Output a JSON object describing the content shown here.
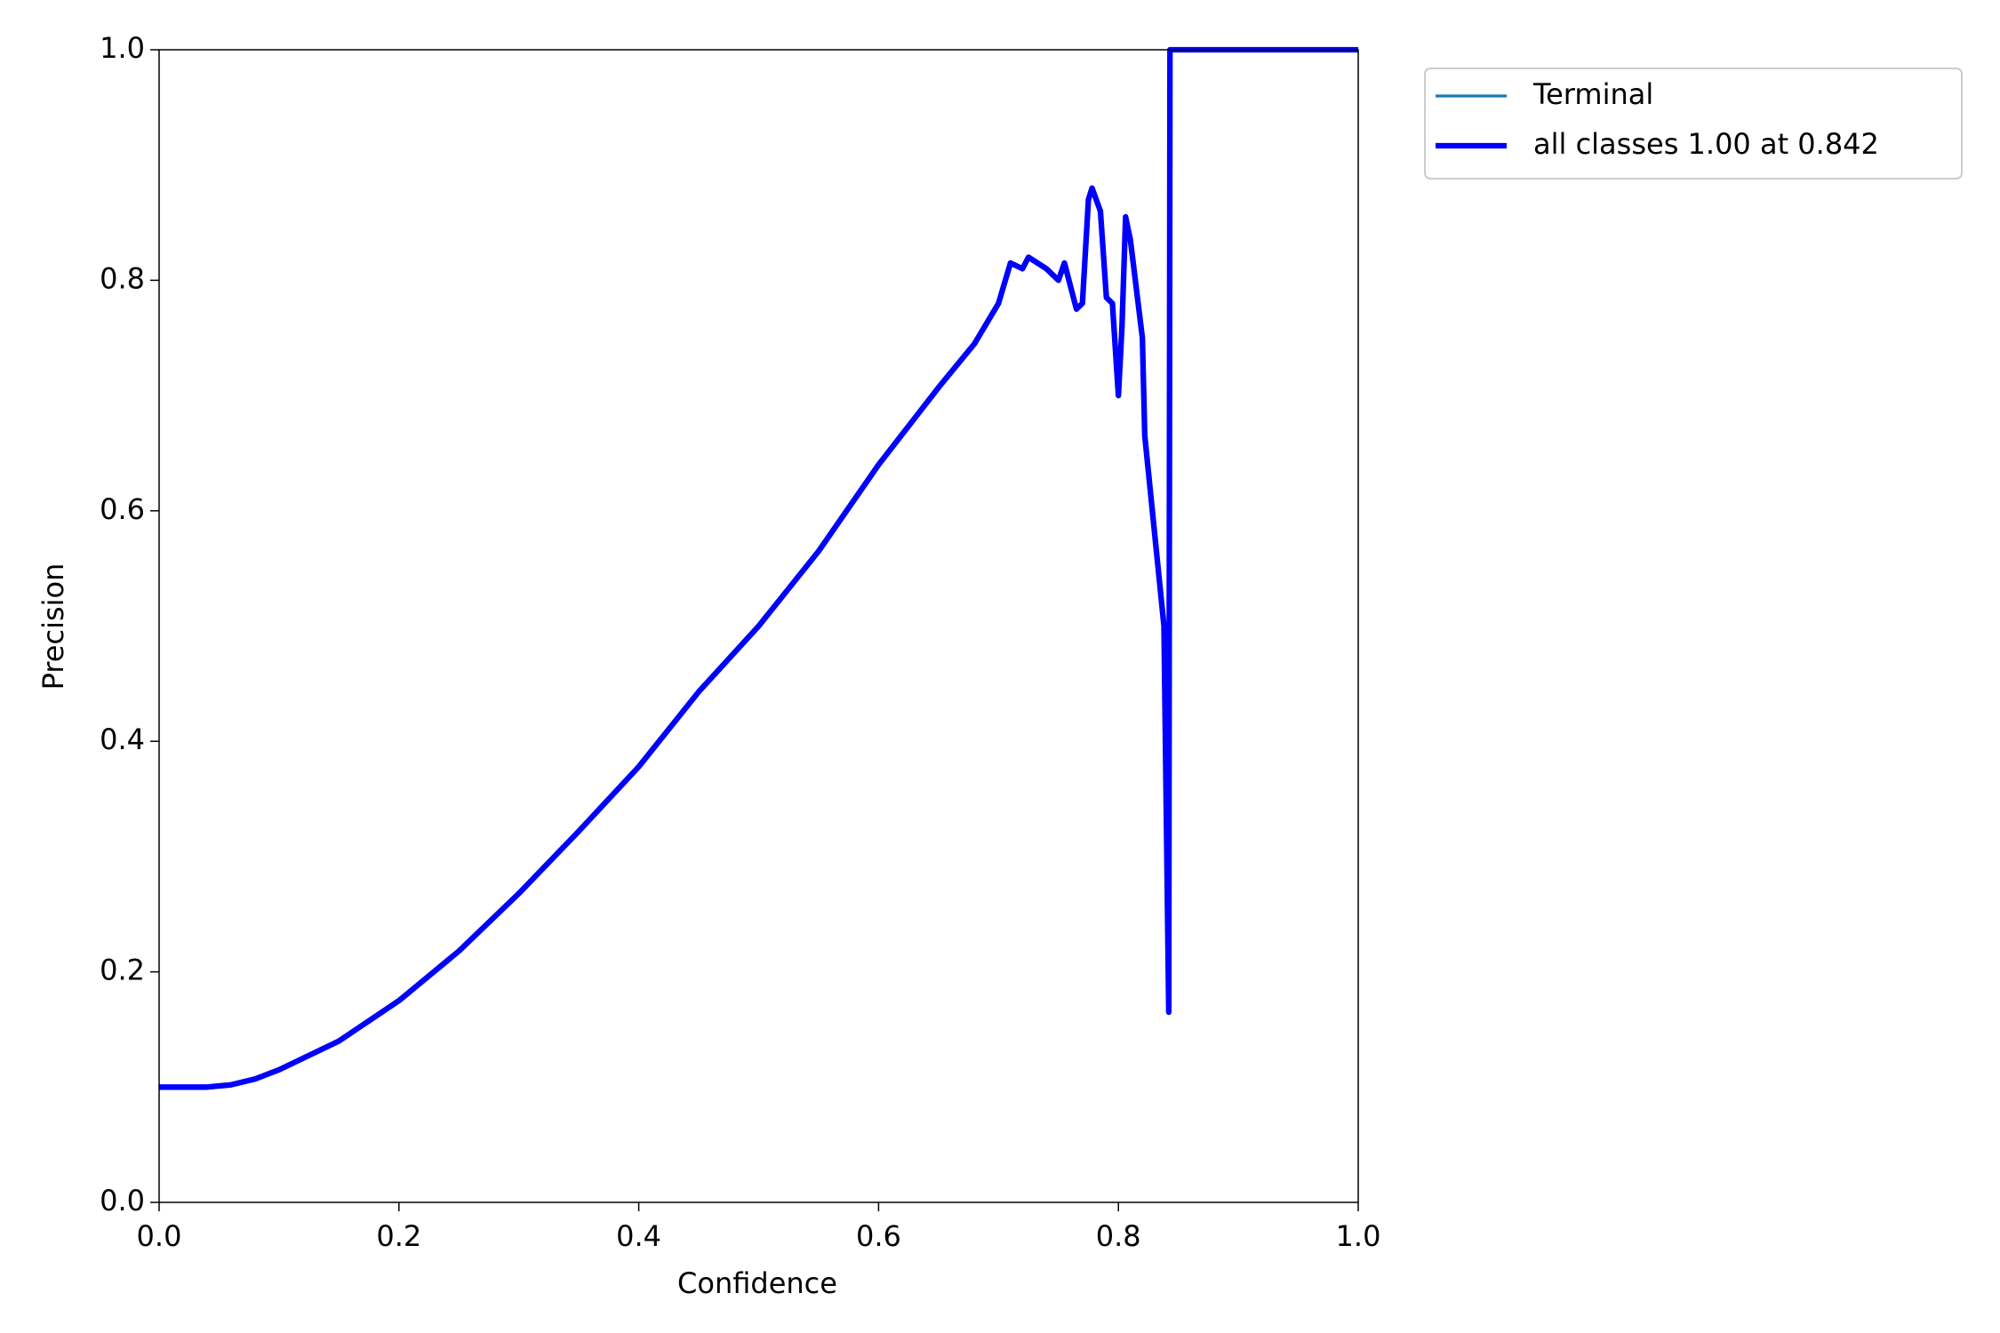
{
  "chart_data": {
    "type": "line",
    "xlabel": "Confidence",
    "ylabel": "Precision",
    "x": [
      0,
      0.04,
      0.06,
      0.08,
      0.1,
      0.15,
      0.2,
      0.25,
      0.3,
      0.35,
      0.4,
      0.45,
      0.5,
      0.55,
      0.6,
      0.65,
      0.68,
      0.7,
      0.71,
      0.72,
      0.725,
      0.74,
      0.75,
      0.755,
      0.765,
      0.77,
      0.775,
      0.778,
      0.785,
      0.79,
      0.795,
      0.8,
      0.803,
      0.806,
      0.81,
      0.82,
      0.822,
      0.838,
      0.842,
      0.843,
      1.0
    ],
    "series": [
      {
        "name": "Terminal",
        "color": "#1f77b4",
        "line_width": 1.5,
        "values": [
          0.1,
          0.1,
          0.102,
          0.107,
          0.115,
          0.14,
          0.175,
          0.218,
          0.268,
          0.322,
          0.378,
          0.443,
          0.5,
          0.565,
          0.64,
          0.707,
          0.745,
          0.78,
          0.815,
          0.81,
          0.82,
          0.81,
          0.8,
          0.815,
          0.775,
          0.78,
          0.87,
          0.88,
          0.86,
          0.785,
          0.78,
          0.7,
          0.76,
          0.855,
          0.835,
          0.75,
          0.665,
          0.5,
          0.165,
          1.0,
          1.0
        ]
      },
      {
        "name": "all classes 1.00 at 0.842",
        "color": "#0000ff",
        "line_width": 3,
        "values": [
          0.1,
          0.1,
          0.102,
          0.107,
          0.115,
          0.14,
          0.175,
          0.218,
          0.268,
          0.322,
          0.378,
          0.443,
          0.5,
          0.565,
          0.64,
          0.707,
          0.745,
          0.78,
          0.815,
          0.81,
          0.82,
          0.81,
          0.8,
          0.815,
          0.775,
          0.78,
          0.87,
          0.88,
          0.86,
          0.785,
          0.78,
          0.7,
          0.76,
          0.855,
          0.835,
          0.75,
          0.665,
          0.5,
          0.165,
          1.0,
          1.0
        ]
      }
    ],
    "xlim": [
      0,
      1
    ],
    "ylim": [
      0,
      1
    ],
    "xticks": [
      {
        "value": 0,
        "label": "0.0"
      },
      0.2,
      0.4,
      0.6,
      0.8,
      {
        "value": 1,
        "label": "1.0"
      }
    ],
    "yticks": [
      {
        "value": 0,
        "label": "0.0"
      },
      0.2,
      0.4,
      0.6,
      0.8,
      {
        "value": 1,
        "label": "1.0"
      }
    ],
    "grid": false,
    "legend": "outside upper right"
  }
}
